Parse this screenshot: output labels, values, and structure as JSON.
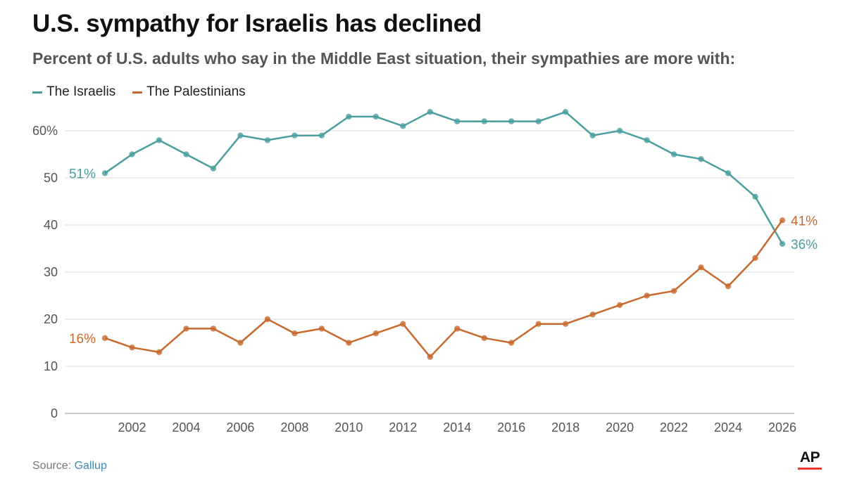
{
  "chart_data": {
    "type": "line",
    "title": "U.S. sympathy for Israelis has declined",
    "subtitle": "Percent of U.S. adults who say in the Middle East situation, their sympathies are more with:",
    "x": [
      2001,
      2002,
      2003,
      2004,
      2005,
      2006,
      2007,
      2008,
      2009,
      2010,
      2011,
      2012,
      2013,
      2014,
      2015,
      2016,
      2017,
      2018,
      2019,
      2020,
      2021,
      2022,
      2023,
      2024,
      2025,
      2026
    ],
    "series": [
      {
        "name": "The Israelis",
        "color": "#4a9e9f",
        "values": [
          51,
          55,
          58,
          55,
          52,
          59,
          58,
          59,
          59,
          63,
          63,
          61,
          64,
          62,
          62,
          62,
          62,
          64,
          59,
          60,
          58,
          55,
          54,
          51,
          46,
          36
        ],
        "start_label": "51%",
        "end_label": "36%"
      },
      {
        "name": "The Palestinians",
        "color": "#c8692e",
        "values": [
          16,
          14,
          13,
          18,
          18,
          15,
          20,
          17,
          18,
          15,
          17,
          19,
          12,
          18,
          16,
          15,
          19,
          19,
          21,
          23,
          25,
          26,
          31,
          27,
          33,
          41
        ],
        "start_label": "16%",
        "end_label": "41%"
      }
    ],
    "xticks": [
      "2002",
      "2004",
      "2006",
      "2008",
      "2010",
      "2012",
      "2014",
      "2016",
      "2018",
      "2020",
      "2022",
      "2024",
      "2026"
    ],
    "yticks": [
      "0",
      "10",
      "20",
      "30",
      "40",
      "50",
      "60%"
    ],
    "ylim": [
      0,
      60
    ],
    "xlabel": "",
    "ylabel": "",
    "grid": true,
    "legend": "top-left"
  },
  "source": {
    "prefix": "Source:",
    "name": "Gallup"
  },
  "logo": {
    "text": "AP",
    "bar_color": "#e8362b"
  }
}
